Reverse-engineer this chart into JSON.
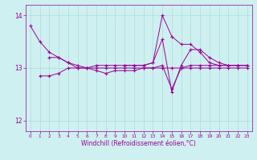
{
  "xlabel": "Windchill (Refroidissement éolien,°C)",
  "bg_color": "#cff0f0",
  "line_color": "#990099",
  "grid_color": "#aadddd",
  "xlim": [
    -0.5,
    23.5
  ],
  "ylim": [
    11.8,
    14.2
  ],
  "yticks": [
    12,
    13,
    14
  ],
  "xticks": [
    0,
    1,
    2,
    3,
    4,
    5,
    6,
    7,
    8,
    9,
    10,
    11,
    12,
    13,
    14,
    15,
    16,
    17,
    18,
    19,
    20,
    21,
    22,
    23
  ],
  "series": [
    {
      "x": [
        0,
        1,
        2,
        3,
        4,
        5,
        6,
        7,
        8,
        9,
        10,
        11,
        12,
        13,
        14,
        15,
        16,
        17,
        18,
        19,
        20,
        21,
        22,
        23
      ],
      "y": [
        13.8,
        13.5,
        13.3,
        13.2,
        13.1,
        13.05,
        13.0,
        13.0,
        13.0,
        13.0,
        13.0,
        13.0,
        13.0,
        13.0,
        13.0,
        13.0,
        13.0,
        13.0,
        13.0,
        13.0,
        13.0,
        13.0,
        13.0,
        13.0
      ]
    },
    {
      "x": [
        2,
        3,
        4,
        5,
        6,
        7,
        8,
        9,
        10,
        11,
        12,
        13,
        14,
        15,
        16,
        17,
        18,
        19,
        20,
        21,
        22,
        23
      ],
      "y": [
        13.2,
        13.2,
        13.1,
        13.0,
        13.0,
        13.05,
        13.05,
        13.05,
        13.05,
        13.05,
        13.05,
        13.1,
        14.0,
        13.6,
        13.45,
        13.45,
        13.3,
        13.1,
        13.05,
        13.05,
        13.05,
        13.05
      ]
    },
    {
      "x": [
        1,
        2,
        3,
        4,
        5,
        6,
        7,
        8,
        9,
        10,
        11,
        12,
        13,
        14,
        15,
        16,
        17,
        18,
        19,
        20,
        21,
        22,
        23
      ],
      "y": [
        12.85,
        12.85,
        12.9,
        13.0,
        13.0,
        13.0,
        12.95,
        12.9,
        12.95,
        12.95,
        12.95,
        13.0,
        13.0,
        13.05,
        12.6,
        13.0,
        13.05,
        13.05,
        13.05,
        13.05,
        13.05,
        13.05,
        13.05
      ]
    },
    {
      "x": [
        10,
        11,
        12,
        13,
        14,
        15,
        16,
        17,
        18,
        19,
        20,
        21,
        22,
        23
      ],
      "y": [
        13.05,
        13.05,
        13.05,
        13.1,
        13.55,
        12.55,
        13.05,
        13.35,
        13.35,
        13.2,
        13.1,
        13.05,
        13.05,
        13.05
      ]
    }
  ]
}
